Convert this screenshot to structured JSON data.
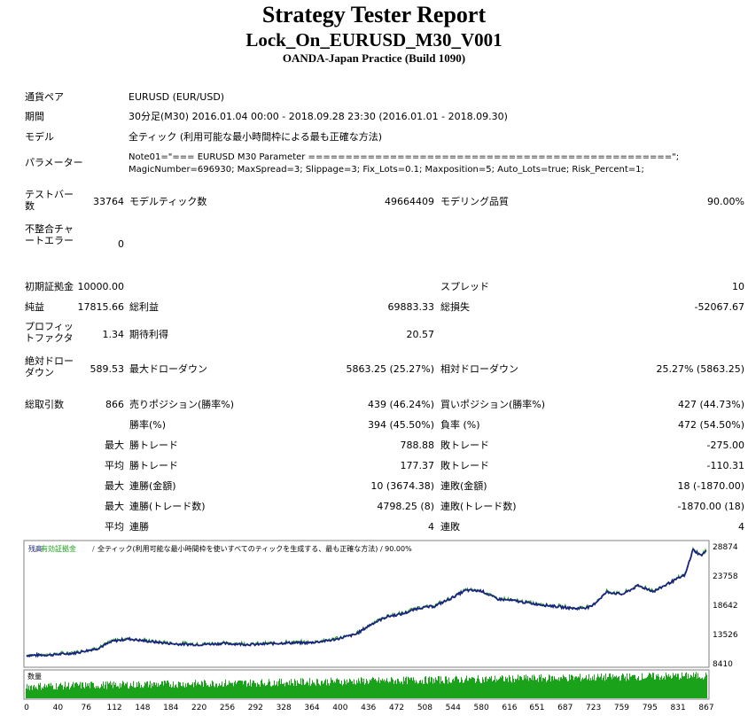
{
  "header": {
    "title": "Strategy Tester Report",
    "ea_name": "Lock_On_EURUSD_M30_V001",
    "server": "OANDA-Japan Practice (Build 1090)"
  },
  "info": {
    "symbol_label": "通貨ペア",
    "symbol_value": "EURUSD (EUR/USD)",
    "period_label": "期間",
    "period_value": "30分足(M30) 2016.01.04 00:00 - 2018.09.28 23:30 (2016.01.01 - 2018.09.30)",
    "model_label": "モデル",
    "model_value": "全ティック (利用可能な最小時間枠による最も正確な方法)",
    "params_label": "パラメーター",
    "params_line1": "Note01=\"=== EURUSD M30 Parameter =================================================\";",
    "params_line2": "MagicNumber=696930; MaxSpread=3; Slippage=3; Fix_Lots=0.1; Maxposition=5; Auto_Lots=true; Risk_Percent=1;"
  },
  "stats": {
    "bars_label": "テストバー数",
    "bars_value": "33764",
    "ticks_label": "モデルティック数",
    "ticks_value": "49664409",
    "quality_label": "モデリング品質",
    "quality_value": "90.00%",
    "mismatch_label": "不整合チャートエラー",
    "mismatch_value": "0",
    "deposit_label": "初期証拠金",
    "deposit_value": "10000.00",
    "spread_label": "スプレッド",
    "spread_value": "10",
    "net_label": "純益",
    "net_value": "17815.66",
    "gross_profit_label": "総利益",
    "gross_profit_value": "69883.33",
    "gross_loss_label": "総損失",
    "gross_loss_value": "-52067.67",
    "pf_label": "プロフィットファクタ",
    "pf_value": "1.34",
    "expected_label": "期待利得",
    "expected_value": "20.57",
    "abs_dd_label": "絶対ドローダウン",
    "abs_dd_value": "589.53",
    "max_dd_label": "最大ドローダウン",
    "max_dd_value": "5863.25 (25.27%)",
    "rel_dd_label": "相対ドローダウン",
    "rel_dd_value": "25.27% (5863.25)",
    "trades_label": "総取引数",
    "trades_value": "866",
    "short_label": "売りポジション(勝率%)",
    "short_value": "439 (46.24%)",
    "long_label": "買いポジション(勝率%)",
    "long_value": "427 (44.73%)",
    "win_label": "勝率(%)",
    "win_value": "394 (45.50%)",
    "loss_label": "負率 (%)",
    "loss_value": "472 (54.50%)",
    "max_word": "最大",
    "avg_word": "平均",
    "lw_label": "勝トレード",
    "lw_value": "788.88",
    "ll_label": "敗トレード",
    "ll_value": "-275.00",
    "aw_label": "勝トレード",
    "aw_value": "177.37",
    "al_label": "敗トレード",
    "al_value": "-110.31",
    "mcw_label": "連勝(金額)",
    "mcw_value": "10 (3674.38)",
    "mcl_label": "連敗(金額)",
    "mcl_value": "18 (-1870.00)",
    "mcp_label": "連勝(トレード数)",
    "mcp_value": "4798.25 (8)",
    "mcpl_label": "連敗(トレード数)",
    "mcpl_value": "-1870.00 (18)",
    "acw_label": "連勝",
    "acw_value": "4",
    "acl_label": "連敗",
    "acl_value": "4"
  },
  "chart_data": {
    "type": "line",
    "legend_balance": "残高",
    "legend_equity": "有効証拠金",
    "legend_rest": "全ティック(利用可能な最小時間枠を使いすべてのティックを生成する、最も正確な方法) / 90.00%",
    "volume_label": "数量",
    "y_ticks": [
      "28874",
      "23758",
      "18642",
      "13526",
      "8410"
    ],
    "ylim": [
      8410,
      28874
    ],
    "x_ticks": [
      "0",
      "40",
      "76",
      "112",
      "148",
      "184",
      "220",
      "256",
      "292",
      "328",
      "364",
      "400",
      "436",
      "472",
      "508",
      "544",
      "580",
      "616",
      "651",
      "687",
      "723",
      "759",
      "795",
      "831",
      "867"
    ],
    "x": [
      0,
      30,
      60,
      90,
      110,
      130,
      160,
      190,
      220,
      250,
      290,
      330,
      360,
      390,
      420,
      440,
      460,
      480,
      500,
      520,
      540,
      560,
      580,
      600,
      620,
      650,
      680,
      700,
      720,
      740,
      760,
      780,
      800,
      820,
      840,
      850,
      860,
      867
    ],
    "balance": [
      9700,
      9800,
      10100,
      10900,
      12200,
      12600,
      12100,
      11700,
      11600,
      11800,
      11600,
      11900,
      11900,
      12400,
      13400,
      15200,
      16500,
      17000,
      18000,
      18300,
      19600,
      21100,
      21000,
      19600,
      19300,
      18700,
      18200,
      17900,
      18200,
      20800,
      20400,
      21900,
      20900,
      22400,
      23800,
      28200,
      27200,
      27900
    ],
    "series_colors": {
      "balance": "#1a237e",
      "equity": "#1aa31a"
    }
  }
}
